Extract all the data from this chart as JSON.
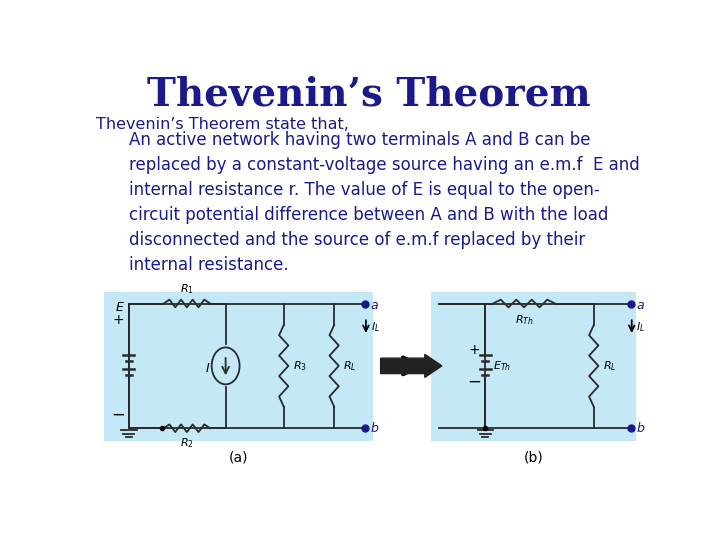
{
  "title": "Thevenin’s Theorem",
  "title_color": "#1a1a8c",
  "title_fontsize": 28,
  "body_text_color": "#1a1a8c",
  "body_fontsize": 12,
  "subtitle": "Thevenin’s Theorem state that,",
  "subtitle_fontsize": 11.5,
  "paragraph": "An active network having two terminals A and B can be\nreplaced by a constant-voltage source having an e.m.f  E and\ninternal resistance r. The value of E is equal to the open-\ncircuit potential difference between A and B with the load\ndisconnected and the source of e.m.f replaced by their\ninternal resistance.",
  "bg_color": "#ffffff",
  "circuit_bg": "#c5e8f7",
  "wire_color": "#2a2a2a",
  "label_a": "(a)",
  "label_b": "(b)",
  "dark_blue": "#1a1a8c"
}
